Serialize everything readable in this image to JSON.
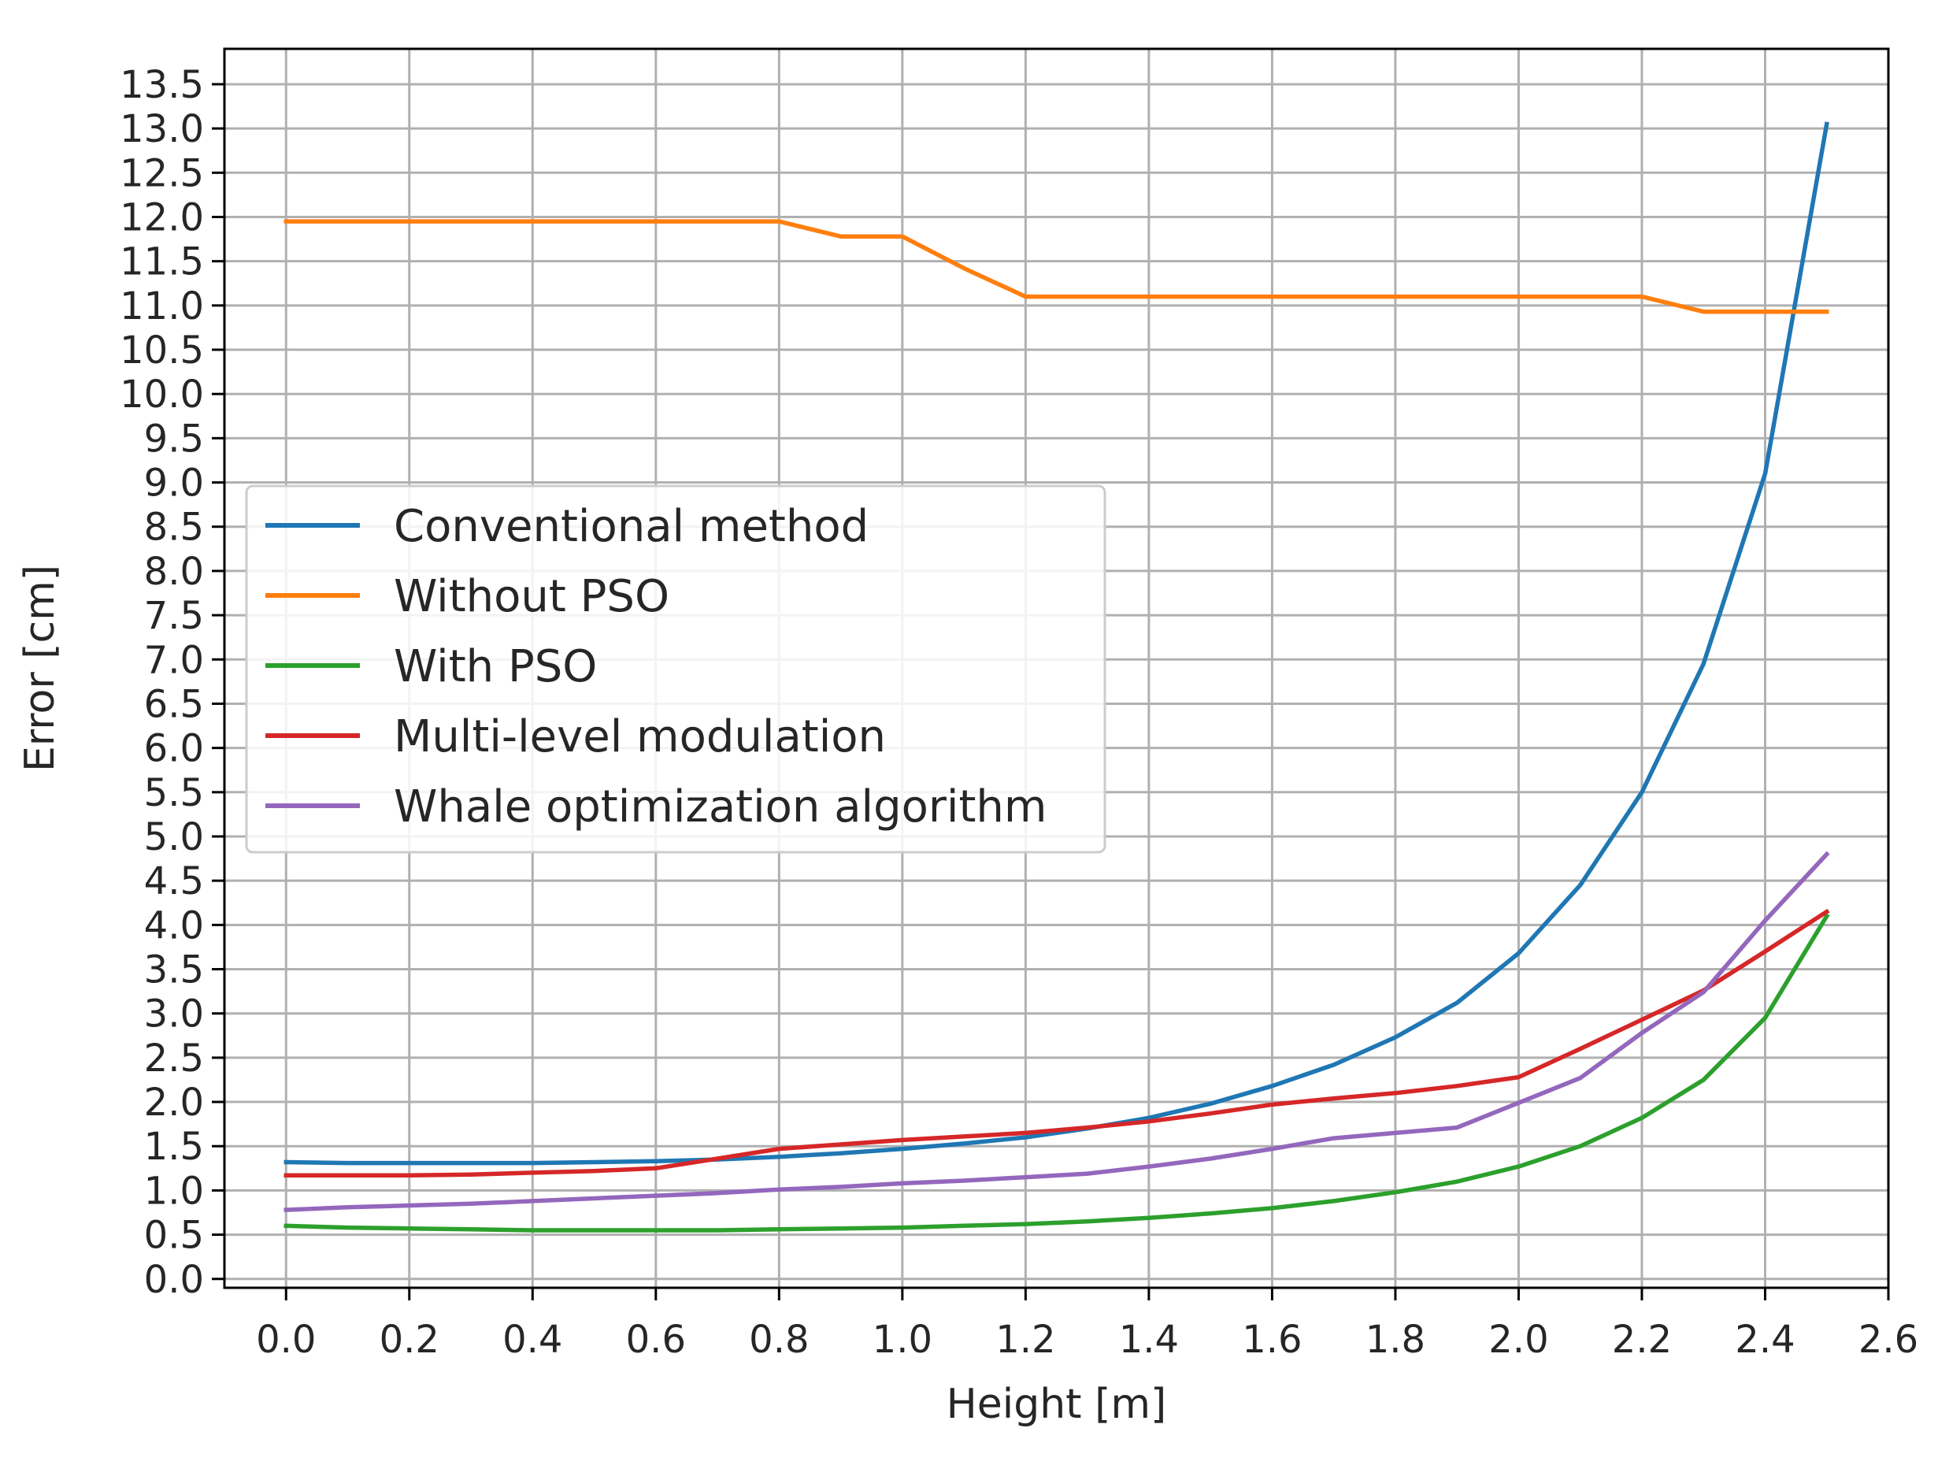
{
  "chart_data": {
    "type": "line",
    "title": "",
    "xlabel": "Height [m]",
    "ylabel": "Error [cm]",
    "xlim": [
      -0.1,
      2.6
    ],
    "ylim": [
      -0.1,
      13.9
    ],
    "grid": true,
    "legend_position": "center-left",
    "x_ticks": [
      "0.0",
      "0.2",
      "0.4",
      "0.6",
      "0.8",
      "1.0",
      "1.2",
      "1.4",
      "1.6",
      "1.8",
      "2.0",
      "2.2",
      "2.4",
      "2.6"
    ],
    "y_ticks": [
      "0.0",
      "0.5",
      "1.0",
      "1.5",
      "2.0",
      "2.5",
      "3.0",
      "3.5",
      "4.0",
      "4.5",
      "5.0",
      "5.5",
      "6.0",
      "6.5",
      "7.0",
      "7.5",
      "8.0",
      "8.5",
      "9.0",
      "9.5",
      "10.0",
      "10.5",
      "11.0",
      "11.5",
      "12.0",
      "12.5",
      "13.0",
      "13.5"
    ],
    "x": [
      0.0,
      0.1,
      0.2,
      0.3,
      0.4,
      0.5,
      0.6,
      0.7,
      0.8,
      0.9,
      1.0,
      1.1,
      1.2,
      1.3,
      1.4,
      1.5,
      1.6,
      1.7,
      1.8,
      1.9,
      2.0,
      2.1,
      2.2,
      2.3,
      2.4,
      2.5
    ],
    "series": [
      {
        "name": "Conventional method",
        "color": "#1f77b4",
        "values": [
          1.32,
          1.31,
          1.31,
          1.31,
          1.31,
          1.32,
          1.33,
          1.35,
          1.38,
          1.42,
          1.47,
          1.53,
          1.6,
          1.7,
          1.82,
          1.98,
          2.18,
          2.42,
          2.73,
          3.12,
          3.68,
          4.45,
          5.5,
          6.95,
          9.1,
          13.05
        ]
      },
      {
        "name": "Without PSO",
        "color": "#ff7f0e",
        "values": [
          11.95,
          11.95,
          11.95,
          11.95,
          11.95,
          11.95,
          11.95,
          11.95,
          11.95,
          11.78,
          11.78,
          11.42,
          11.1,
          11.1,
          11.1,
          11.1,
          11.1,
          11.1,
          11.1,
          11.1,
          11.1,
          11.1,
          11.1,
          10.93,
          10.93,
          10.93
        ]
      },
      {
        "name": "With PSO",
        "color": "#2ca02c",
        "values": [
          0.6,
          0.58,
          0.57,
          0.56,
          0.55,
          0.55,
          0.55,
          0.55,
          0.56,
          0.57,
          0.58,
          0.6,
          0.62,
          0.65,
          0.69,
          0.74,
          0.8,
          0.88,
          0.98,
          1.1,
          1.27,
          1.5,
          1.82,
          2.25,
          2.95,
          4.1
        ]
      },
      {
        "name": "Multi-level modulation",
        "color": "#d62728",
        "values": [
          1.17,
          1.17,
          1.17,
          1.18,
          1.2,
          1.22,
          1.25,
          1.36,
          1.47,
          1.52,
          1.57,
          1.61,
          1.65,
          1.71,
          1.78,
          1.87,
          1.97,
          2.04,
          2.1,
          2.18,
          2.28,
          2.6,
          2.93,
          3.26,
          3.7,
          4.15
        ]
      },
      {
        "name": "Whale optimization algorithm",
        "color": "#9467bd",
        "values": [
          0.78,
          0.81,
          0.83,
          0.85,
          0.88,
          0.91,
          0.94,
          0.97,
          1.01,
          1.04,
          1.08,
          1.11,
          1.15,
          1.19,
          1.27,
          1.36,
          1.47,
          1.59,
          1.65,
          1.71,
          1.99,
          2.27,
          2.78,
          3.24,
          4.05,
          4.8
        ]
      }
    ]
  }
}
